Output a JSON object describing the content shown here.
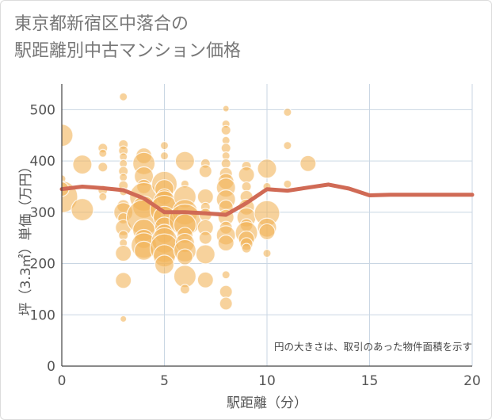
{
  "chart_data": {
    "type": "scatter",
    "title_line1": "東京都新宿区中落合の",
    "title_line2": "駅距離別中古マンション価格",
    "xlabel": "駅距離（分）",
    "ylabel": "坪（3.3㎡）単価（万円）",
    "note": "円の大きさは、取引のあった物件面積を示す",
    "xlim": [
      0,
      20
    ],
    "ylim": [
      0,
      550
    ],
    "xticks": [
      "0",
      "5",
      "10",
      "15",
      "20"
    ],
    "yticks": [
      "0",
      "100",
      "200",
      "300",
      "400",
      "500"
    ],
    "grid": true,
    "bubble_color": "#f2b45a",
    "line_color": "#d06a55",
    "bubbles": [
      {
        "x": 0,
        "y": 450,
        "size": 14
      },
      {
        "x": 0,
        "y": 365,
        "size": 5
      },
      {
        "x": 0,
        "y": 330,
        "size": 20
      },
      {
        "x": 0,
        "y": 345,
        "size": 9
      },
      {
        "x": 1,
        "y": 393,
        "size": 12
      },
      {
        "x": 1,
        "y": 305,
        "size": 14
      },
      {
        "x": 2,
        "y": 425,
        "size": 6
      },
      {
        "x": 2,
        "y": 415,
        "size": 5
      },
      {
        "x": 2,
        "y": 388,
        "size": 6
      },
      {
        "x": 2,
        "y": 343,
        "size": 6
      },
      {
        "x": 2,
        "y": 330,
        "size": 5
      },
      {
        "x": 3,
        "y": 525,
        "size": 5
      },
      {
        "x": 3,
        "y": 432,
        "size": 6
      },
      {
        "x": 3,
        "y": 420,
        "size": 6
      },
      {
        "x": 3,
        "y": 408,
        "size": 5
      },
      {
        "x": 3,
        "y": 395,
        "size": 5
      },
      {
        "x": 3,
        "y": 380,
        "size": 6
      },
      {
        "x": 3,
        "y": 368,
        "size": 5
      },
      {
        "x": 3,
        "y": 352,
        "size": 6
      },
      {
        "x": 3,
        "y": 340,
        "size": 5
      },
      {
        "x": 3,
        "y": 312,
        "size": 8
      },
      {
        "x": 3,
        "y": 300,
        "size": 12
      },
      {
        "x": 3,
        "y": 288,
        "size": 7
      },
      {
        "x": 3,
        "y": 270,
        "size": 10
      },
      {
        "x": 3,
        "y": 255,
        "size": 6
      },
      {
        "x": 3,
        "y": 240,
        "size": 5
      },
      {
        "x": 3,
        "y": 220,
        "size": 10
      },
      {
        "x": 3,
        "y": 167,
        "size": 10
      },
      {
        "x": 3,
        "y": 92,
        "size": 4
      },
      {
        "x": 4,
        "y": 410,
        "size": 10
      },
      {
        "x": 4,
        "y": 395,
        "size": 14
      },
      {
        "x": 4,
        "y": 370,
        "size": 12
      },
      {
        "x": 4,
        "y": 350,
        "size": 9
      },
      {
        "x": 4,
        "y": 330,
        "size": 18
      },
      {
        "x": 4,
        "y": 310,
        "size": 14
      },
      {
        "x": 4,
        "y": 290,
        "size": 22
      },
      {
        "x": 4,
        "y": 265,
        "size": 14
      },
      {
        "x": 4,
        "y": 248,
        "size": 12
      },
      {
        "x": 4,
        "y": 235,
        "size": 16
      },
      {
        "x": 4,
        "y": 225,
        "size": 12
      },
      {
        "x": 5,
        "y": 430,
        "size": 5
      },
      {
        "x": 5,
        "y": 410,
        "size": 5
      },
      {
        "x": 5,
        "y": 355,
        "size": 16
      },
      {
        "x": 5,
        "y": 345,
        "size": 12
      },
      {
        "x": 5,
        "y": 330,
        "size": 10
      },
      {
        "x": 5,
        "y": 320,
        "size": 14
      },
      {
        "x": 5,
        "y": 305,
        "size": 18
      },
      {
        "x": 5,
        "y": 290,
        "size": 14
      },
      {
        "x": 5,
        "y": 272,
        "size": 12
      },
      {
        "x": 5,
        "y": 258,
        "size": 12
      },
      {
        "x": 5,
        "y": 245,
        "size": 16
      },
      {
        "x": 5,
        "y": 230,
        "size": 18
      },
      {
        "x": 5,
        "y": 215,
        "size": 14
      },
      {
        "x": 5,
        "y": 198,
        "size": 12
      },
      {
        "x": 6,
        "y": 400,
        "size": 12
      },
      {
        "x": 6,
        "y": 355,
        "size": 5
      },
      {
        "x": 6,
        "y": 330,
        "size": 14
      },
      {
        "x": 6,
        "y": 300,
        "size": 16
      },
      {
        "x": 6,
        "y": 285,
        "size": 20
      },
      {
        "x": 6,
        "y": 275,
        "size": 14
      },
      {
        "x": 6,
        "y": 255,
        "size": 10
      },
      {
        "x": 6,
        "y": 240,
        "size": 12
      },
      {
        "x": 6,
        "y": 225,
        "size": 14
      },
      {
        "x": 6,
        "y": 213,
        "size": 10
      },
      {
        "x": 6,
        "y": 175,
        "size": 14
      },
      {
        "x": 6,
        "y": 150,
        "size": 6
      },
      {
        "x": 7,
        "y": 395,
        "size": 6
      },
      {
        "x": 7,
        "y": 380,
        "size": 8
      },
      {
        "x": 7,
        "y": 330,
        "size": 10
      },
      {
        "x": 7,
        "y": 310,
        "size": 6
      },
      {
        "x": 7,
        "y": 295,
        "size": 8
      },
      {
        "x": 7,
        "y": 270,
        "size": 10
      },
      {
        "x": 7,
        "y": 250,
        "size": 8
      },
      {
        "x": 7,
        "y": 218,
        "size": 12
      },
      {
        "x": 7,
        "y": 168,
        "size": 10
      },
      {
        "x": 8,
        "y": 502,
        "size": 4
      },
      {
        "x": 8,
        "y": 472,
        "size": 5
      },
      {
        "x": 8,
        "y": 460,
        "size": 6
      },
      {
        "x": 8,
        "y": 440,
        "size": 5
      },
      {
        "x": 8,
        "y": 425,
        "size": 6
      },
      {
        "x": 8,
        "y": 410,
        "size": 5
      },
      {
        "x": 8,
        "y": 395,
        "size": 6
      },
      {
        "x": 8,
        "y": 375,
        "size": 8
      },
      {
        "x": 8,
        "y": 360,
        "size": 10
      },
      {
        "x": 8,
        "y": 348,
        "size": 12
      },
      {
        "x": 8,
        "y": 325,
        "size": 12
      },
      {
        "x": 8,
        "y": 310,
        "size": 9
      },
      {
        "x": 8,
        "y": 290,
        "size": 10
      },
      {
        "x": 8,
        "y": 270,
        "size": 8
      },
      {
        "x": 8,
        "y": 255,
        "size": 12
      },
      {
        "x": 8,
        "y": 240,
        "size": 10
      },
      {
        "x": 8,
        "y": 178,
        "size": 5
      },
      {
        "x": 8,
        "y": 145,
        "size": 8
      },
      {
        "x": 8,
        "y": 122,
        "size": 8
      },
      {
        "x": 9,
        "y": 390,
        "size": 6
      },
      {
        "x": 9,
        "y": 373,
        "size": 10
      },
      {
        "x": 9,
        "y": 350,
        "size": 6
      },
      {
        "x": 9,
        "y": 330,
        "size": 8
      },
      {
        "x": 9,
        "y": 310,
        "size": 10
      },
      {
        "x": 9,
        "y": 290,
        "size": 12
      },
      {
        "x": 9,
        "y": 275,
        "size": 8
      },
      {
        "x": 9,
        "y": 260,
        "size": 14
      },
      {
        "x": 9,
        "y": 248,
        "size": 10
      },
      {
        "x": 9,
        "y": 238,
        "size": 8
      },
      {
        "x": 9,
        "y": 230,
        "size": 6
      },
      {
        "x": 10,
        "y": 385,
        "size": 12
      },
      {
        "x": 10,
        "y": 350,
        "size": 5
      },
      {
        "x": 10,
        "y": 298,
        "size": 16
      },
      {
        "x": 10,
        "y": 270,
        "size": 12
      },
      {
        "x": 10,
        "y": 262,
        "size": 10
      },
      {
        "x": 10,
        "y": 220,
        "size": 5
      },
      {
        "x": 11,
        "y": 495,
        "size": 5
      },
      {
        "x": 11,
        "y": 430,
        "size": 5
      },
      {
        "x": 11,
        "y": 355,
        "size": 5
      },
      {
        "x": 12,
        "y": 395,
        "size": 10
      }
    ],
    "line": {
      "name": "",
      "x": [
        0,
        1,
        2,
        3,
        4,
        5,
        6,
        7,
        8,
        9,
        10,
        11,
        12,
        13,
        14,
        15,
        16,
        17,
        18,
        19,
        20
      ],
      "y": [
        345,
        350,
        347,
        343,
        327,
        300,
        300,
        298,
        295,
        318,
        345,
        342,
        348,
        354,
        346,
        333,
        334,
        334,
        334,
        334,
        334
      ]
    }
  }
}
